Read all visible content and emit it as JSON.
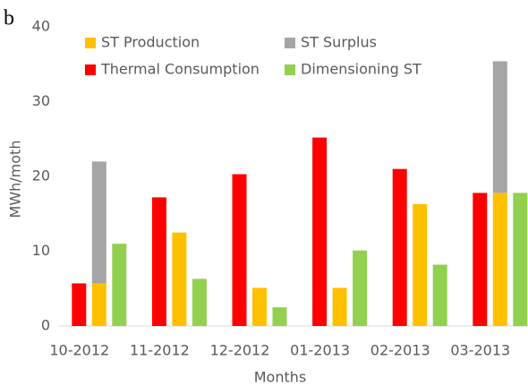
{
  "chart_data": {
    "type": "bar",
    "panel_label": "b",
    "x_label": "Months",
    "y_label": "MWh/moth",
    "categories": [
      "10-2012",
      "11-2012",
      "12-2012",
      "01-2013",
      "02-2013",
      "03-2013"
    ],
    "series": [
      {
        "name": "ST Production",
        "color": "#ffc000",
        "values": [
          5.7,
          12.5,
          5.1,
          5.1,
          16.3,
          17.8
        ]
      },
      {
        "name": "ST Surplus",
        "color": "#a5a5a5",
        "values": [
          16.3,
          0,
          0,
          0,
          0,
          17.6
        ]
      },
      {
        "name": "Thermal Consumption",
        "color": "#ff0000",
        "values": [
          5.7,
          17.2,
          20.3,
          25.2,
          21.0,
          17.8
        ]
      },
      {
        "name": "Dimensioning ST",
        "color": "#92d050",
        "values": [
          11.0,
          6.3,
          2.5,
          10.1,
          8.2,
          17.8
        ]
      }
    ],
    "ylim": [
      0,
      40
    ],
    "yticks": [
      0,
      10,
      20,
      30,
      40
    ],
    "grid": false
  }
}
